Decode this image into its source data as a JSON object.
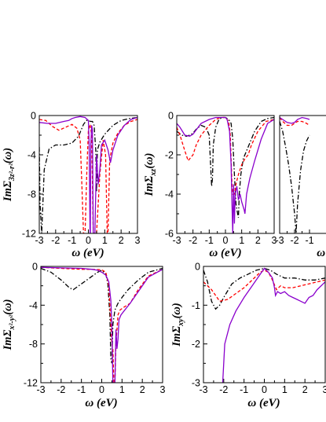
{
  "colors": {
    "black": "#000000",
    "red": "#ff0000",
    "violet": "#8a00cc"
  },
  "chart_data": [
    {
      "type": "line",
      "id": "p1",
      "ylabel": {
        "main": "ImΣ",
        "sub": "3z²-r²",
        "tail": "(ω)"
      },
      "xlabel": "ω (eV)",
      "xlim": [
        -3,
        3
      ],
      "ylim": [
        -12,
        0
      ],
      "xticks": [
        "-3",
        "-2",
        "-1",
        "0",
        "1",
        "2",
        "3"
      ],
      "yticks": [
        "0",
        "-4",
        "-8",
        "-12"
      ],
      "series": [
        {
          "style": "dashdot",
          "color": "#000000",
          "x": [
            -3,
            -2.95,
            -2.85,
            -2.7,
            -2.4,
            -2.0,
            -1.5,
            -1.0,
            -0.6,
            -0.3,
            -0.12,
            0.0,
            0.12,
            0.25,
            0.35,
            0.45,
            0.5,
            0.55,
            0.7,
            1.0,
            1.5,
            2.0,
            2.5,
            3.0
          ],
          "y": [
            -3.2,
            -9.0,
            -12.0,
            -5.5,
            -3.4,
            -3.0,
            -3.0,
            -2.8,
            -2.1,
            -0.9,
            -0.5,
            -0.5,
            -0.6,
            -0.6,
            -1.0,
            -3.5,
            -7.8,
            -3.5,
            -2.7,
            -1.9,
            -1.0,
            -0.5,
            -0.3,
            -0.2
          ]
        },
        {
          "style": "dashed",
          "color": "#ff0000",
          "x": [
            -3,
            -2.6,
            -2.2,
            -1.8,
            -1.4,
            -1.0,
            -0.7,
            -0.5,
            -0.4,
            -0.3,
            -0.2,
            -0.1,
            0.0,
            0.1,
            0.2,
            0.3,
            0.5,
            0.7,
            0.9,
            1.05,
            1.15,
            1.2,
            1.3,
            1.5,
            1.8,
            2.2,
            2.6,
            3.0
          ],
          "y": [
            -0.4,
            -0.5,
            -1.1,
            -1.5,
            -1.2,
            -0.9,
            -1.3,
            -2.5,
            -7.0,
            -12.0,
            -12.0,
            -6.0,
            -1.5,
            -0.9,
            -2.0,
            -12.0,
            -12.0,
            -6.0,
            -2.5,
            -4.0,
            -12.0,
            -12.0,
            -4.5,
            -2.8,
            -1.8,
            -1.0,
            -0.6,
            -0.4
          ]
        },
        {
          "style": "solid",
          "color": "#8a00cc",
          "x": [
            -3,
            -2.5,
            -2.0,
            -1.5,
            -1.2,
            -1.0,
            -0.8,
            -0.5,
            -0.2,
            0.0,
            0.05,
            0.1,
            0.12,
            0.15,
            0.2,
            0.25,
            0.3,
            0.4,
            0.5,
            0.6,
            0.7,
            0.8,
            1.0,
            1.2,
            1.35,
            1.5,
            1.8,
            2.2,
            2.6,
            3.0
          ],
          "y": [
            -0.7,
            -0.8,
            -0.8,
            -0.6,
            -0.5,
            -0.3,
            -0.2,
            -0.1,
            -0.2,
            -0.5,
            -3.0,
            -12.0,
            -12.0,
            -3.0,
            -1.0,
            -1.5,
            -12.0,
            -12.0,
            -4.0,
            -7.0,
            -5.5,
            -3.0,
            -2.5,
            -3.5,
            -4.8,
            -3.5,
            -2.0,
            -1.0,
            -0.4,
            -0.2
          ]
        }
      ]
    },
    {
      "type": "line",
      "id": "p2",
      "ylabel": {
        "main": "ImΣ",
        "sub": "xz",
        "tail": "(ω)"
      },
      "xlabel": "ω (eV)",
      "xlim": [
        -3,
        3
      ],
      "ylim": [
        -6,
        0
      ],
      "xticks": [
        "-3",
        "-2",
        "-1",
        "0",
        "1",
        "2",
        "3"
      ],
      "yticks": [
        "0",
        "-2",
        "-4",
        "-6"
      ],
      "series": [
        {
          "style": "dashdot",
          "color": "#000000",
          "x": [
            -3,
            -2.7,
            -2.4,
            -2.2,
            -2.0,
            -1.8,
            -1.5,
            -1.2,
            -1.0,
            -0.85,
            -0.8,
            -0.75,
            -0.6,
            -0.4,
            -0.2,
            0.0,
            0.2,
            0.35,
            0.45,
            0.55,
            0.65,
            0.75,
            0.8,
            0.85,
            0.95,
            1.1,
            1.4,
            1.8,
            2.2,
            2.6,
            3.0
          ],
          "y": [
            -0.8,
            -1.0,
            -1.05,
            -1.0,
            -0.9,
            -0.7,
            -0.5,
            -0.6,
            -1.0,
            -3.6,
            -3.2,
            -1.5,
            -0.6,
            -0.2,
            -0.1,
            -0.1,
            -0.2,
            -0.4,
            -1.2,
            -3.0,
            -4.5,
            -5.0,
            -5.2,
            -4.0,
            -3.0,
            -2.2,
            -1.6,
            -0.8,
            -0.3,
            -0.15,
            -0.1
          ]
        },
        {
          "style": "dashed",
          "color": "#ff0000",
          "x": [
            -3,
            -2.8,
            -2.5,
            -2.3,
            -2.0,
            -1.8,
            -1.5,
            -1.0,
            -0.6,
            -0.3,
            0.0,
            0.2,
            0.3,
            0.4,
            0.45,
            0.55,
            0.65,
            0.8,
            1.0,
            1.2,
            1.4,
            1.6,
            2.0,
            2.5,
            3.0
          ],
          "y": [
            -0.6,
            -1.0,
            -1.8,
            -2.3,
            -2.0,
            -1.5,
            -1.0,
            -0.5,
            -0.2,
            -0.1,
            -0.1,
            -0.3,
            -1.0,
            -3.5,
            -4.0,
            -4.0,
            -3.5,
            -3.0,
            -2.5,
            -2.2,
            -2.0,
            -1.5,
            -0.8,
            -0.3,
            -0.2
          ]
        },
        {
          "style": "solid",
          "color": "#8a00cc",
          "x": [
            -3,
            -2.8,
            -2.5,
            -2.2,
            -2.0,
            -1.5,
            -1.0,
            -0.6,
            -0.3,
            0.0,
            0.1,
            0.25,
            0.35,
            0.4,
            0.45,
            0.5,
            0.55,
            0.6,
            0.7,
            0.8,
            0.9,
            1.0,
            1.15,
            1.2,
            1.3,
            1.5,
            1.8,
            2.2,
            2.6,
            3.0
          ],
          "y": [
            -0.4,
            -0.6,
            -1.0,
            -1.05,
            -0.95,
            -0.4,
            -0.2,
            -0.1,
            -0.1,
            -0.1,
            -0.2,
            -0.8,
            -2.5,
            -4.5,
            -6.0,
            -3.5,
            -5.5,
            -4.0,
            -3.6,
            -4.3,
            -4.0,
            -4.4,
            -4.8,
            -5.0,
            -4.0,
            -3.2,
            -2.3,
            -1.2,
            -0.4,
            -0.2
          ]
        }
      ]
    },
    {
      "type": "line",
      "id": "p3",
      "ylabel": {
        "main": "",
        "sub": "",
        "tail": ""
      },
      "xlabel": "ω (",
      "xlim": [
        -3,
        3
      ],
      "ylim": [
        -6,
        0
      ],
      "xticks": [
        "-3",
        "-2",
        "-1"
      ],
      "yticks": [],
      "series": [
        {
          "style": "dashdot",
          "color": "#000000",
          "x": [
            -3,
            -2.8,
            -2.6,
            -2.4,
            -2.2,
            -2.0,
            -1.9,
            -1.8,
            -1.6,
            -1.4,
            -1.2,
            -1.0
          ],
          "y": [
            -0.3,
            -0.8,
            -1.6,
            -2.5,
            -3.6,
            -5.0,
            -6.0,
            -4.5,
            -2.8,
            -1.8,
            -1.3,
            -1.0
          ]
        },
        {
          "style": "dashed",
          "color": "#ff0000",
          "x": [
            -3,
            -2.8,
            -2.5,
            -2.2,
            -2.0,
            -1.8,
            -1.5,
            -1.2,
            -1.0
          ],
          "y": [
            -0.1,
            -0.3,
            -0.5,
            -0.5,
            -0.4,
            -0.3,
            -0.3,
            -0.4,
            -0.5
          ]
        },
        {
          "style": "solid",
          "color": "#8a00cc",
          "x": [
            -3,
            -2.8,
            -2.5,
            -2.2,
            -2.0,
            -1.8,
            -1.5,
            -1.2,
            -1.0
          ],
          "y": [
            -0.1,
            -0.2,
            -0.35,
            -0.4,
            -0.35,
            -0.2,
            -0.1,
            -0.15,
            -0.2
          ]
        }
      ]
    },
    {
      "type": "line",
      "id": "p4",
      "ylabel": {
        "main": "ImΣ",
        "sub": "x²-y²",
        "tail": "(ω)"
      },
      "xlabel": "ω (eV)",
      "xlim": [
        -3,
        3
      ],
      "ylim": [
        -12,
        0
      ],
      "xticks": [
        "-3",
        "-2",
        "-1",
        "0",
        "1",
        "2",
        "3"
      ],
      "yticks": [
        "0",
        "-4",
        "-8",
        "-12"
      ],
      "series": [
        {
          "style": "dashdot",
          "color": "#000000",
          "x": [
            -3,
            -2.5,
            -2.0,
            -1.6,
            -1.4,
            -1.2,
            -1.0,
            -0.6,
            -0.2,
            0.0,
            0.2,
            0.3,
            0.4,
            0.45,
            0.5,
            0.55,
            0.65,
            0.8,
            1.0,
            1.3,
            1.8,
            2.3,
            3.0
          ],
          "y": [
            -0.2,
            -0.6,
            -1.4,
            -2.2,
            -2.4,
            -2.1,
            -1.8,
            -1.2,
            -0.6,
            -0.4,
            -0.8,
            -1.8,
            -5.0,
            -9.5,
            -10.0,
            -6.0,
            -4.5,
            -3.8,
            -3.2,
            -2.4,
            -1.4,
            -0.6,
            -0.2
          ]
        },
        {
          "style": "dashed",
          "color": "#ff0000",
          "x": [
            -3,
            -2.0,
            -1.0,
            -0.5,
            0.0,
            0.2,
            0.35,
            0.45,
            0.5,
            0.55,
            0.6,
            0.65,
            0.7,
            0.75,
            0.8,
            0.9,
            1.1,
            1.4,
            1.8,
            2.3,
            3.0
          ],
          "y": [
            -0.1,
            -0.2,
            -0.3,
            -0.3,
            -0.35,
            -0.6,
            -2.0,
            -6.0,
            -8.0,
            -8.5,
            -12.0,
            -12.0,
            -8.0,
            -6.5,
            -5.0,
            -4.5,
            -4.2,
            -3.8,
            -2.4,
            -1.0,
            -0.3
          ]
        },
        {
          "style": "solid",
          "color": "#8a00cc",
          "x": [
            -3,
            -2.0,
            -1.0,
            -0.5,
            -0.2,
            0.0,
            0.2,
            0.35,
            0.45,
            0.5,
            0.55,
            0.6,
            0.65,
            0.7,
            0.75,
            0.8,
            0.85,
            0.95,
            1.1,
            1.4,
            1.8,
            2.3,
            3.0
          ],
          "y": [
            -0.1,
            -0.15,
            -0.2,
            -0.3,
            -0.4,
            -0.6,
            -0.9,
            -1.6,
            -3.5,
            -6.0,
            -12.0,
            -12.0,
            -12.0,
            -6.5,
            -8.5,
            -7.5,
            -5.5,
            -5.0,
            -4.6,
            -3.8,
            -2.6,
            -1.1,
            -0.3
          ]
        }
      ]
    },
    {
      "type": "line",
      "id": "p5",
      "ylabel": {
        "main": "ImΣ",
        "sub": "xy",
        "tail": "(ω)"
      },
      "xlabel": "ω (eV)",
      "xlim": [
        -3,
        3
      ],
      "ylim": [
        -3,
        0
      ],
      "xticks": [
        "-3",
        "-2",
        "-1",
        "0",
        "1",
        "2",
        "3"
      ],
      "yticks": [
        "0",
        "-1",
        "-2",
        "-3"
      ],
      "series": [
        {
          "style": "dashdot",
          "color": "#000000",
          "x": [
            -3,
            -2.8,
            -2.6,
            -2.4,
            -2.2,
            -2.0,
            -1.6,
            -1.2,
            -0.8,
            -0.4,
            0.0,
            0.3,
            0.6,
            1.0,
            1.5,
            2.0,
            2.5,
            3.0
          ],
          "y": [
            -0.1,
            -0.4,
            -0.9,
            -1.1,
            -1.0,
            -0.8,
            -0.45,
            -0.3,
            -0.2,
            -0.1,
            -0.05,
            -0.1,
            -0.2,
            -0.3,
            -0.3,
            -0.35,
            -0.35,
            -0.3
          ]
        },
        {
          "style": "dashed",
          "color": "#ff0000",
          "x": [
            -3,
            -2.6,
            -2.2,
            -1.8,
            -1.4,
            -1.0,
            -0.6,
            -0.2,
            0.0,
            0.2,
            0.4,
            0.6,
            0.8,
            1.0,
            1.4,
            1.8,
            2.2,
            2.6,
            3.0
          ],
          "y": [
            -0.4,
            -0.6,
            -0.9,
            -0.85,
            -0.7,
            -0.55,
            -0.35,
            -0.15,
            -0.1,
            -0.15,
            -0.35,
            -0.6,
            -0.5,
            -0.55,
            -0.55,
            -0.5,
            -0.45,
            -0.4,
            -0.35
          ]
        },
        {
          "style": "solid",
          "color": "#8a00cc",
          "x": [
            -2.05,
            -1.95,
            -1.7,
            -1.4,
            -1.0,
            -0.6,
            -0.2,
            0.0,
            0.2,
            0.4,
            0.5,
            0.55,
            0.65,
            0.8,
            1.0,
            1.2,
            1.4,
            1.6,
            1.8,
            2.0,
            2.2,
            2.4,
            2.6,
            3.0
          ],
          "y": [
            -3.0,
            -2.0,
            -1.5,
            -1.15,
            -0.8,
            -0.5,
            -0.2,
            -0.05,
            -0.15,
            -0.3,
            -0.55,
            -0.75,
            -0.65,
            -0.7,
            -0.65,
            -0.75,
            -0.8,
            -0.85,
            -0.9,
            -0.95,
            -0.8,
            -0.75,
            -0.6,
            -0.4
          ]
        }
      ]
    }
  ]
}
